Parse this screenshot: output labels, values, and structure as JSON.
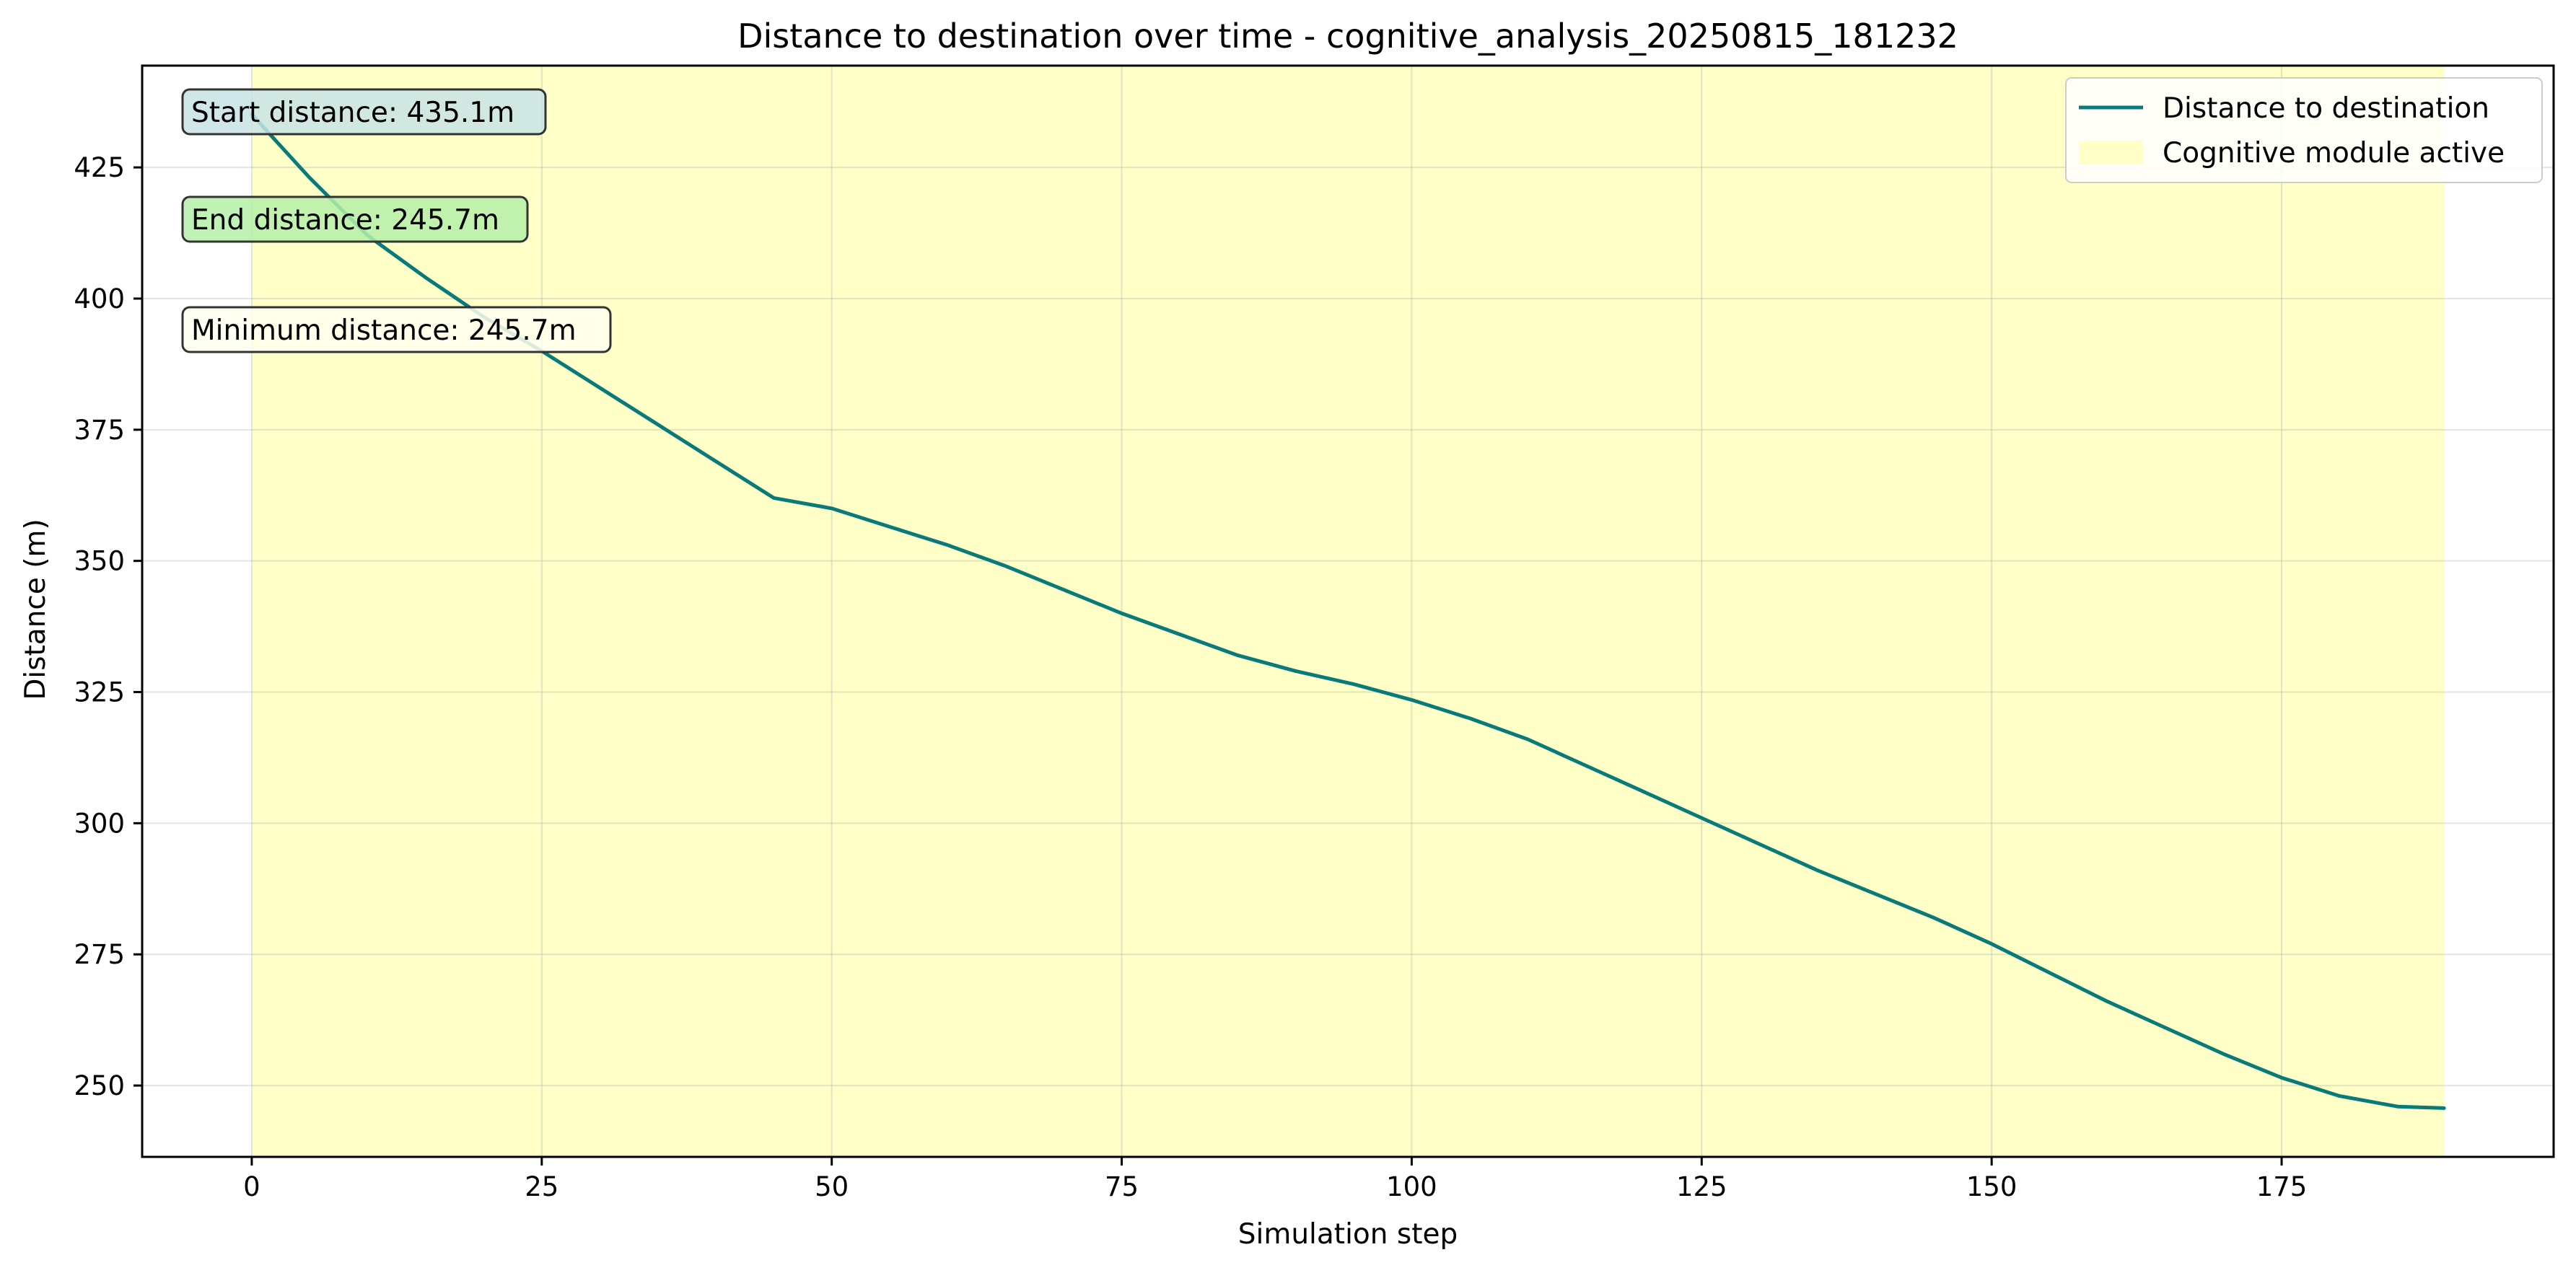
{
  "chart_data": {
    "type": "line",
    "title": "Distance to destination over time - cognitive_analysis_20250815_181232",
    "xlabel": "Simulation step",
    "ylabel": "Distance (m)",
    "xlim": [
      -9.45,
      198.45
    ],
    "ylim": [
      236.4,
      444.4
    ],
    "x_ticks": [
      0,
      25,
      50,
      75,
      100,
      125,
      150,
      175
    ],
    "y_ticks": [
      250,
      275,
      300,
      325,
      350,
      375,
      400,
      425
    ],
    "grid": true,
    "legend_position": "top-right",
    "series": [
      {
        "name": "Distance to destination",
        "color": "#087a7a",
        "x": [
          0,
          5,
          10,
          15,
          20,
          25,
          30,
          35,
          40,
          45,
          50,
          55,
          60,
          65,
          70,
          75,
          80,
          85,
          90,
          95,
          100,
          105,
          110,
          115,
          120,
          125,
          130,
          135,
          140,
          145,
          150,
          155,
          160,
          165,
          170,
          175,
          180,
          185,
          189
        ],
        "y": [
          435.1,
          423,
          412,
          404,
          396.5,
          390,
          383,
          376,
          369,
          362,
          360,
          356.5,
          353,
          349,
          344.5,
          340,
          336,
          332,
          329,
          326.5,
          323.5,
          320,
          316,
          311,
          306,
          301,
          296,
          291,
          286.5,
          282,
          277,
          271.5,
          266,
          261,
          256,
          251.5,
          248,
          246,
          245.7
        ]
      }
    ],
    "shaded_region": {
      "name": "Cognitive module active",
      "x_start": 0,
      "x_end": 189,
      "color": "#ffffc8"
    },
    "annotations": [
      {
        "text": "Start distance: 435.1m",
        "background": "#c8e3e6"
      },
      {
        "text": "End distance: 245.7m",
        "background": "#b5f0a8"
      },
      {
        "text": "Minimum distance: 245.7m",
        "background": "#fffff0"
      }
    ]
  }
}
